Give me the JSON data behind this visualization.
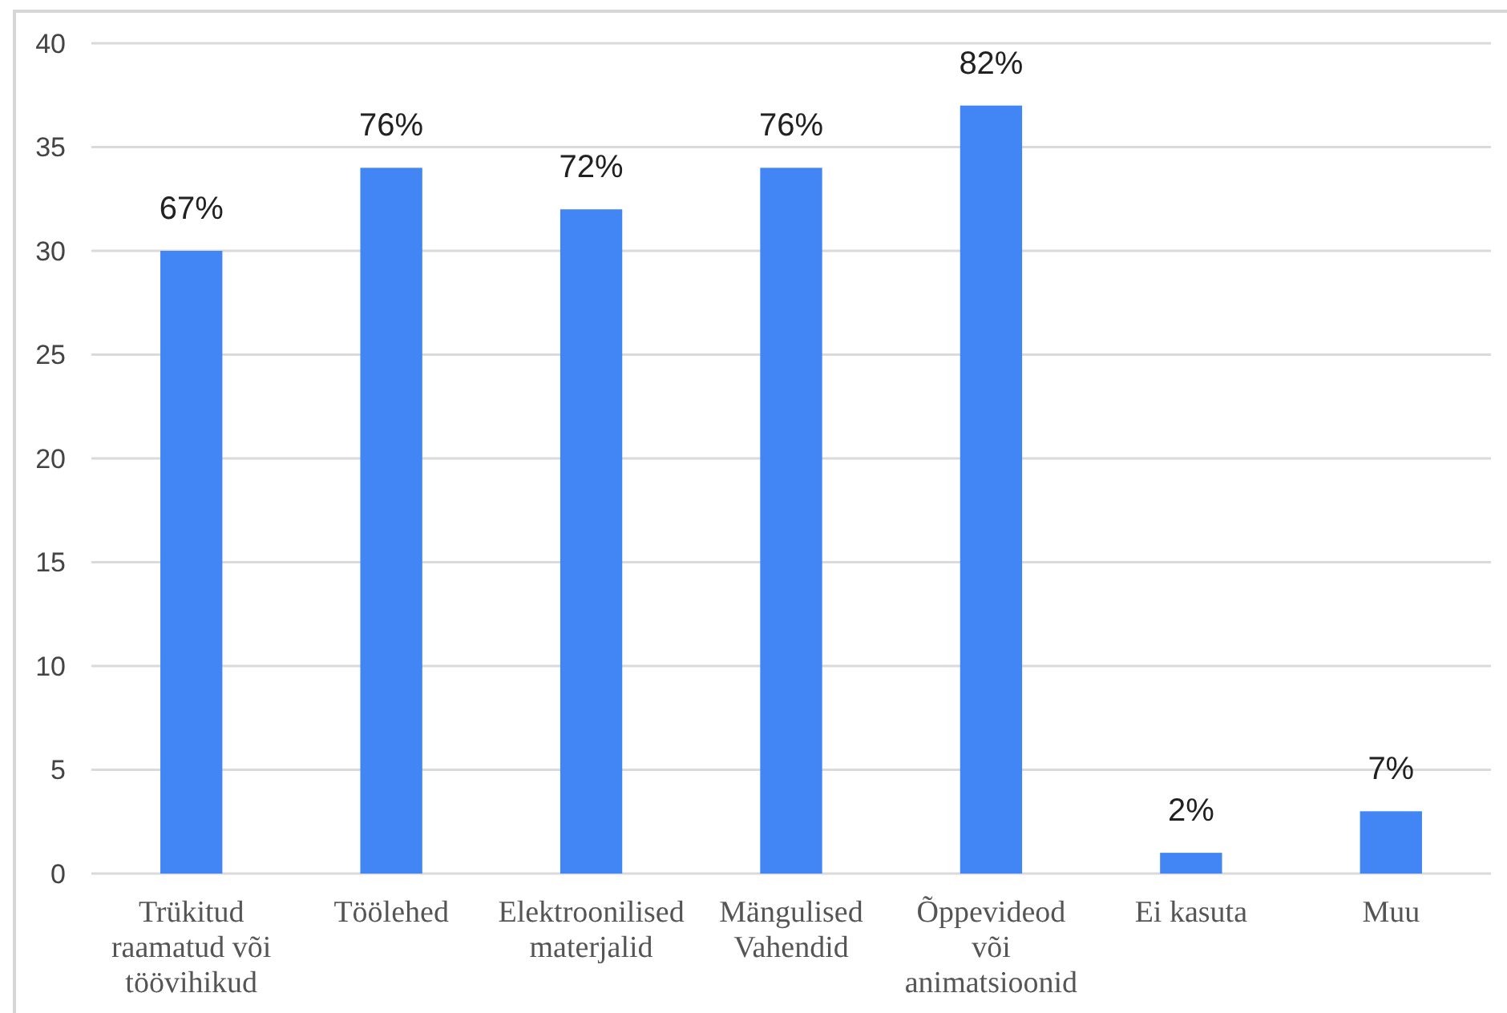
{
  "chart_data": {
    "type": "bar",
    "categories": [
      "Trükitud raamatud või töövihikud",
      "Töölehed",
      "Elektroonilised materjalid",
      "Mängulised Vahendid",
      "Õppevideod või animatsioonid",
      "Ei kasuta",
      "Muu"
    ],
    "values": [
      30,
      34,
      32,
      34,
      37,
      1,
      3
    ],
    "color": "#4285f4",
    "annotations": [
      {
        "text": "67%",
        "x": "Trükitud raamatud või töövihikud",
        "y": 30
      },
      {
        "text": "76%",
        "x": "Töölehed",
        "y": 34
      },
      {
        "text": "72%",
        "x": "Elektroonilised materjalid",
        "y": 32
      },
      {
        "text": "76%",
        "x": "Mängulised Vahendid",
        "y": 34
      },
      {
        "text": "82%",
        "x": "Õppevideod või animatsioonid",
        "y": 37
      },
      {
        "text": "2%",
        "x": "Ei kasuta",
        "y": 1
      },
      {
        "text": "7%",
        "x": "Muu",
        "y": 3
      }
    ],
    "ylim": [
      0,
      40
    ],
    "yticks": [
      0,
      5,
      10,
      15,
      20,
      25,
      30,
      35,
      40
    ],
    "grid": "y"
  }
}
